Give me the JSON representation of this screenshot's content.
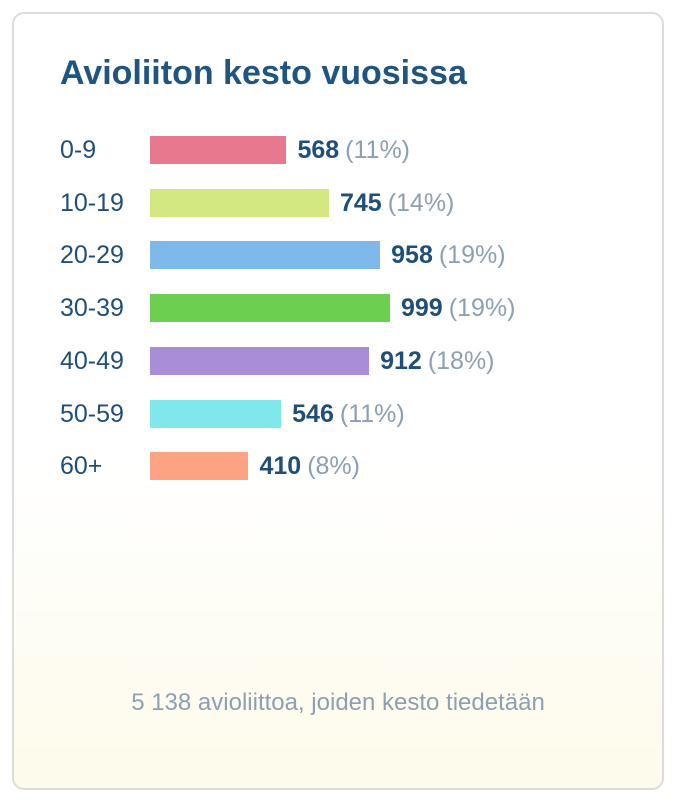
{
  "chart_data": {
    "type": "bar",
    "title": "Avioliiton kesto vuosissa",
    "categories": [
      "0-9",
      "10-19",
      "20-29",
      "30-39",
      "40-49",
      "50-59",
      "60+"
    ],
    "values": [
      568,
      745,
      958,
      999,
      912,
      546,
      410
    ],
    "percentages": [
      "(11%)",
      "(14%)",
      "(19%)",
      "(19%)",
      "(18%)",
      "(11%)",
      "(8%)"
    ],
    "colors": [
      "#e8788d",
      "#d3e880",
      "#7fb8ea",
      "#6dcf4f",
      "#a98dd6",
      "#80e8ec",
      "#fda283"
    ],
    "orientation": "horizontal",
    "grid": false,
    "footer": "5 138 avioliittoa, joiden kesto tiedetään"
  }
}
